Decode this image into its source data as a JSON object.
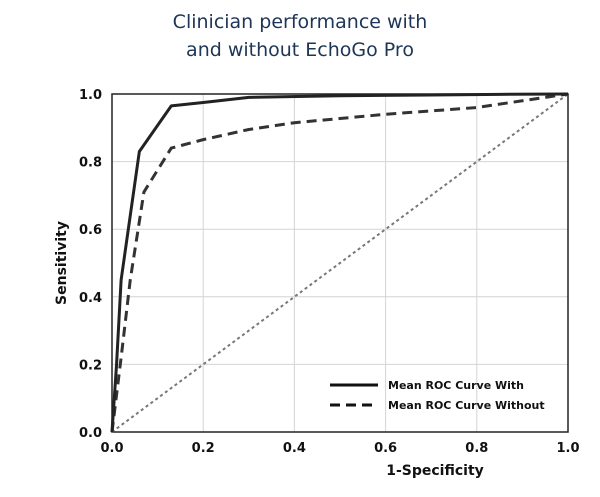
{
  "chart_data": {
    "type": "line",
    "title_lines": [
      "Clinician performance with",
      "and without EchoGo Pro"
    ],
    "xlabel": "1-Specificity",
    "ylabel": "Sensitivity",
    "xlim": [
      0,
      1
    ],
    "ylim": [
      0,
      1
    ],
    "x_ticks": [
      "0.0",
      "0.2",
      "0.4",
      "0.6",
      "0.8",
      "1.0"
    ],
    "y_ticks": [
      "0.0",
      "0.2",
      "0.4",
      "0.6",
      "0.8",
      "1.0"
    ],
    "grid": true,
    "legend_position": "bottom-right",
    "series": [
      {
        "name": "Mean ROC Curve With",
        "style": "solid",
        "color": "#222222",
        "x": [
          0.0,
          0.01,
          0.02,
          0.06,
          0.13,
          0.2,
          0.3,
          0.5,
          0.7,
          0.85,
          1.0
        ],
        "y": [
          0.0,
          0.2,
          0.45,
          0.83,
          0.965,
          0.975,
          0.99,
          0.995,
          0.997,
          0.999,
          1.0
        ]
      },
      {
        "name": "Mean ROC Curve Without",
        "style": "dashed",
        "color": "#333333",
        "x": [
          0.0,
          0.02,
          0.04,
          0.07,
          0.13,
          0.2,
          0.3,
          0.4,
          0.6,
          0.8,
          0.9,
          1.0
        ],
        "y": [
          0.0,
          0.22,
          0.45,
          0.71,
          0.84,
          0.865,
          0.895,
          0.915,
          0.94,
          0.96,
          0.98,
          1.0
        ]
      },
      {
        "style": "dotted",
        "color": "#777777",
        "x": [
          0.0,
          1.0
        ],
        "y": [
          0.0,
          1.0
        ]
      }
    ]
  }
}
